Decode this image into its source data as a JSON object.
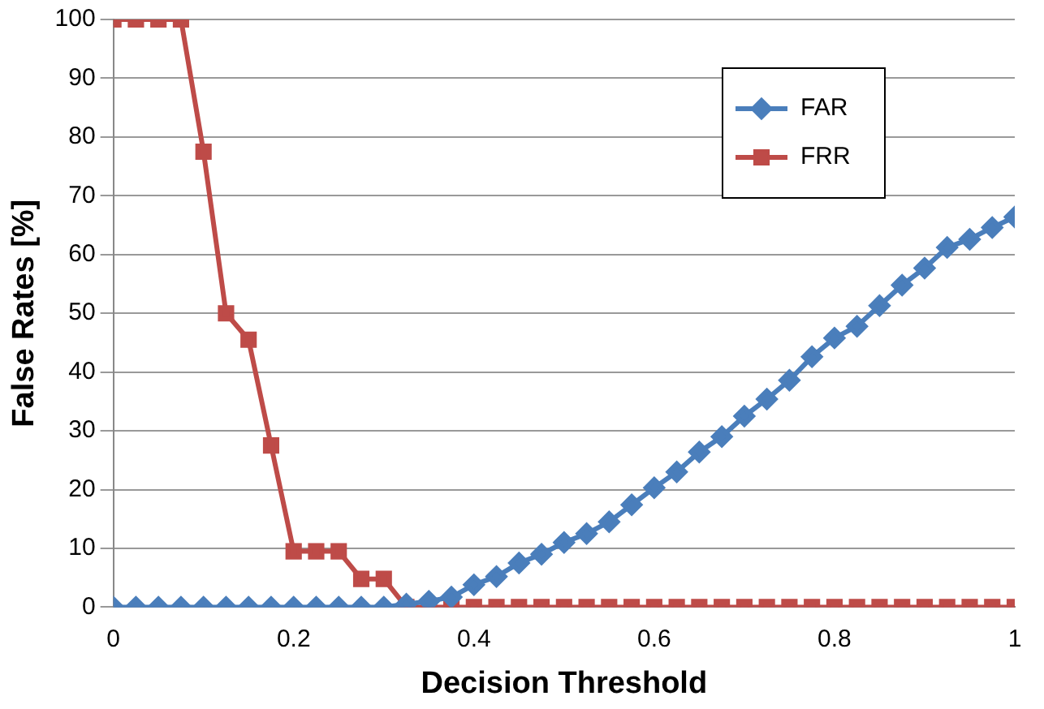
{
  "chart_data": {
    "type": "line",
    "xlabel": "Decision Threshold",
    "ylabel": "False Rates [%]",
    "x": [
      0,
      0.025,
      0.05,
      0.075,
      0.1,
      0.125,
      0.15,
      0.175,
      0.2,
      0.225,
      0.25,
      0.275,
      0.3,
      0.325,
      0.35,
      0.375,
      0.4,
      0.425,
      0.45,
      0.475,
      0.5,
      0.525,
      0.55,
      0.575,
      0.6,
      0.625,
      0.65,
      0.675,
      0.7,
      0.725,
      0.75,
      0.775,
      0.8,
      0.825,
      0.85,
      0.875,
      0.9,
      0.925,
      0.95,
      0.975,
      1
    ],
    "xlim": [
      0,
      1
    ],
    "xticks": [
      0,
      0.2,
      0.4,
      0.6,
      0.8,
      1
    ],
    "ylim": [
      0,
      100
    ],
    "yticks": [
      0,
      10,
      20,
      30,
      40,
      50,
      60,
      70,
      80,
      90,
      100
    ],
    "grid": "y",
    "legend": "top right",
    "series": [
      {
        "name": "FAR",
        "color": "#4a7ebb",
        "marker": "diamond",
        "values": [
          0,
          0,
          0,
          0,
          0,
          0,
          0,
          0,
          0,
          0,
          0,
          0,
          0,
          0.5,
          1,
          1.7,
          3.8,
          5.2,
          7.5,
          9,
          11,
          12.5,
          14.5,
          17.4,
          20.3,
          23,
          26.4,
          29,
          32.5,
          35.4,
          38.6,
          42.6,
          45.8,
          47.8,
          51.3,
          54.8,
          57.7,
          61.2,
          62.6,
          64.6,
          66.4
        ]
      },
      {
        "name": "FRR",
        "color": "#be4b48",
        "marker": "square",
        "values": [
          100,
          100,
          100,
          100,
          77.5,
          50,
          45.5,
          27.5,
          9.5,
          9.5,
          9.5,
          4.8,
          4.8,
          0,
          0,
          0,
          0,
          0,
          0,
          0,
          0,
          0,
          0,
          0,
          0,
          0,
          0,
          0,
          0,
          0,
          0,
          0,
          0,
          0,
          0,
          0,
          0,
          0,
          0,
          0,
          0
        ]
      }
    ]
  }
}
